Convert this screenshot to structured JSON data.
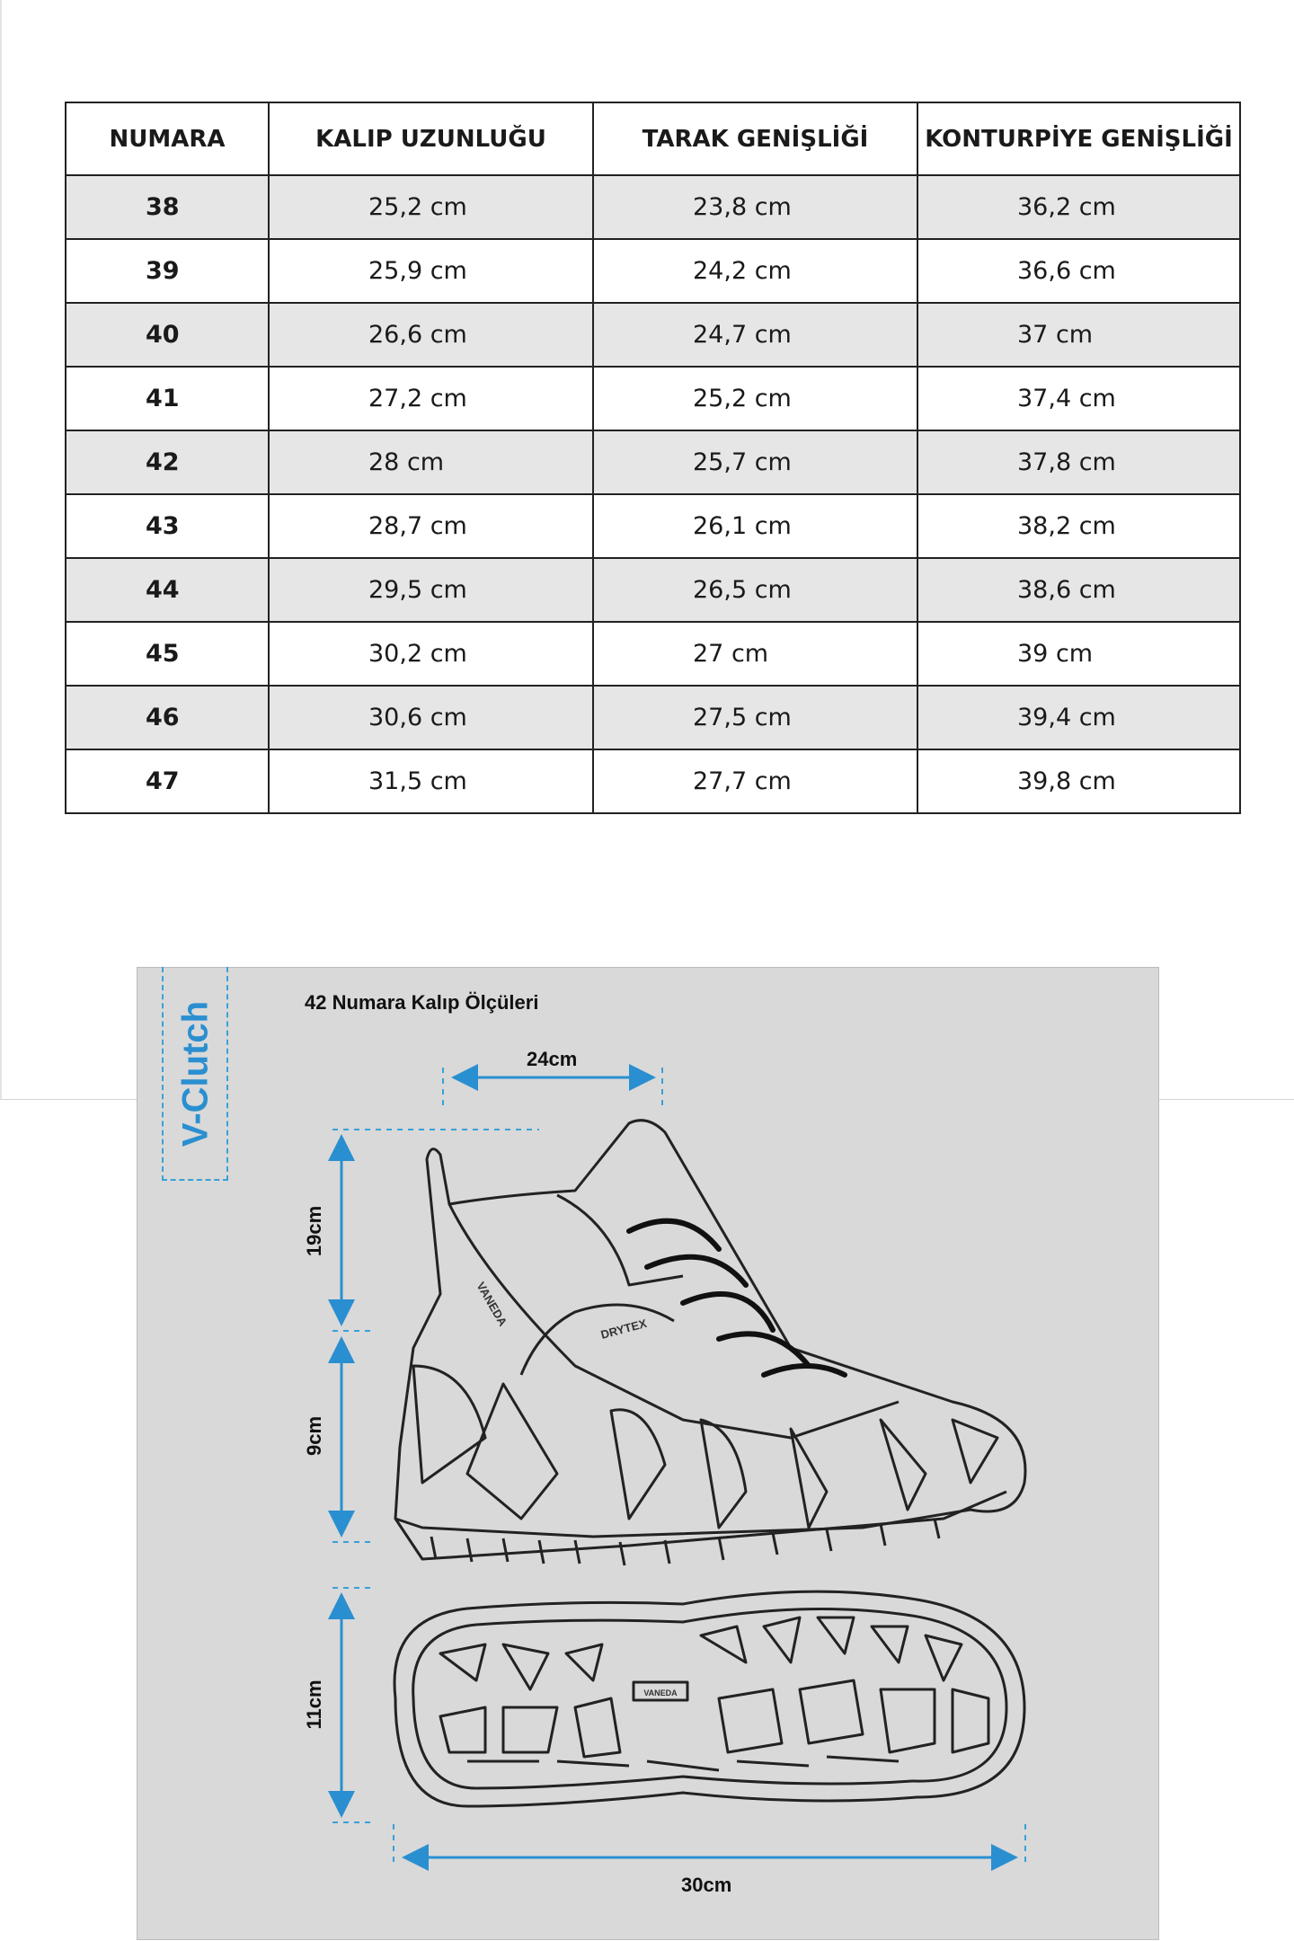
{
  "size_table": {
    "headers": [
      "NUMARA",
      "KALIP UZUNLUĞU",
      "TARAK GENİŞLİĞİ",
      "KONTURPİYE GENİŞLİĞİ"
    ],
    "rows": [
      [
        "38",
        "25,2 cm",
        "23,8 cm",
        "36,2 cm"
      ],
      [
        "39",
        "25,9 cm",
        "24,2 cm",
        "36,6 cm"
      ],
      [
        "40",
        "26,6 cm",
        "24,7 cm",
        "37 cm"
      ],
      [
        "41",
        "27,2 cm",
        "25,2 cm",
        "37,4 cm"
      ],
      [
        "42",
        "28 cm",
        "25,7 cm",
        "37,8 cm"
      ],
      [
        "43",
        "28,7 cm",
        "26,1 cm",
        "38,2 cm"
      ],
      [
        "44",
        "29,5 cm",
        "26,5 cm",
        "38,6 cm"
      ],
      [
        "45",
        "30,2 cm",
        "27 cm",
        "39 cm"
      ],
      [
        "46",
        "30,6 cm",
        "27,5 cm",
        "39,4 cm"
      ],
      [
        "47",
        "31,5 cm",
        "27,7 cm",
        "39,8 cm"
      ]
    ]
  },
  "diagram": {
    "brand": "V-Clutch",
    "title": "42 Numara Kalıp Ölçüleri",
    "dimensions": {
      "width_top": "24cm",
      "upper_height": "19cm",
      "sole_height": "9cm",
      "sole_width": "11cm",
      "length": "30cm"
    },
    "shoe_logo": "VANEDA",
    "shoe_label": "DRYTEX",
    "accent_color": "#2a8fd0",
    "panel_color": "#d9d9d9"
  }
}
